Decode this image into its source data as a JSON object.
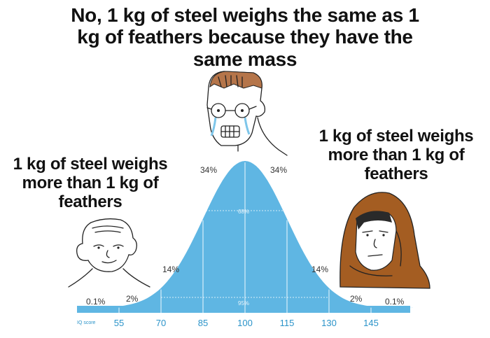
{
  "captions": {
    "top": "No, 1 kg of steel weighs the same as 1 kg of feathers because they have the same mass",
    "left": "1 kg of steel weighs more than 1 kg of feathers",
    "right": "1 kg of steel weighs more than 1 kg of feathers"
  },
  "chart_data": {
    "type": "area",
    "title": "",
    "distribution": "normal",
    "mean": 100,
    "sd": 15,
    "axis_label": "IQ score",
    "x_ticks": [
      "55",
      "70",
      "85",
      "100",
      "115",
      "130",
      "145"
    ],
    "band_labels": {
      "far_left": "0.1%",
      "left_tail": "2%",
      "left_mid": "14%",
      "left_center": "34%",
      "right_center": "34%",
      "right_mid": "14%",
      "right_tail": "2%",
      "far_right": "0.1%"
    },
    "inner_labels": {
      "one_sd": "68%",
      "two_sd": "95%"
    },
    "colors": {
      "curve": "#5fb6e3",
      "lines": "#ffffff",
      "text": "#333333",
      "ticks": "#2a93c9"
    }
  },
  "characters": {
    "left": "wojak-left",
    "center": "crying-nerd-wojak",
    "right": "hooded-monk-wojak"
  }
}
